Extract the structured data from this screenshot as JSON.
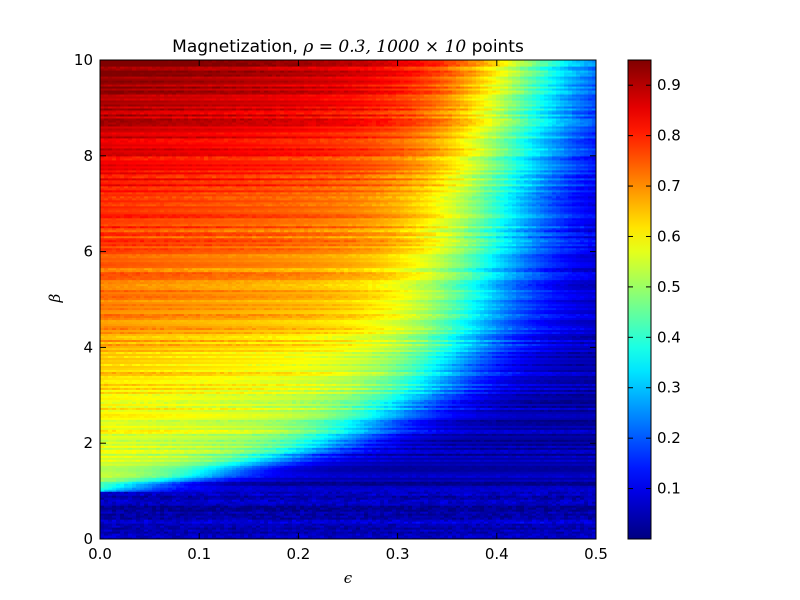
{
  "chart_data": {
    "type": "heatmap",
    "title_prefix": "Magnetization, ",
    "title_math": "ρ = 0.3, 1000 × 10",
    "title_suffix": " points",
    "xlabel": "ϵ",
    "ylabel": "β",
    "xlim": [
      0.0,
      0.5
    ],
    "ylim": [
      0,
      10
    ],
    "x_ticks": [
      "0.0",
      "0.1",
      "0.2",
      "0.3",
      "0.4",
      "0.5"
    ],
    "y_ticks": [
      "0",
      "2",
      "4",
      "6",
      "8",
      "10"
    ],
    "colorbar": {
      "min": 0.0,
      "max": 0.95,
      "ticks": [
        "0.1",
        "0.2",
        "0.3",
        "0.4",
        "0.5",
        "0.6",
        "0.7",
        "0.8",
        "0.9"
      ],
      "colormap": "jet"
    },
    "transition_boundary": {
      "beta": [
        1.0,
        1.3,
        2.0,
        3.0,
        4.0,
        6.0,
        8.0,
        10.0
      ],
      "epsilon": [
        0.0,
        0.1,
        0.24,
        0.33,
        0.37,
        0.4,
        0.42,
        0.44
      ]
    },
    "high_beta_magnetization": 0.95
  }
}
